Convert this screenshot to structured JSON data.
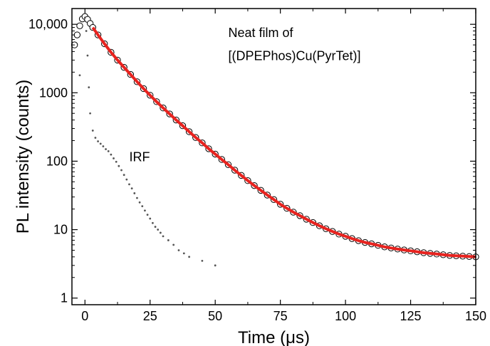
{
  "chart_data": {
    "type": "scatter",
    "scale": "log-y",
    "xlabel": "Time (μs)",
    "ylabel": "PL intensity (counts)",
    "xlim": [
      -5,
      150
    ],
    "ylim": [
      0.8,
      17000
    ],
    "x_ticks": [
      0,
      25,
      50,
      75,
      100,
      125,
      150
    ],
    "x_tick_labels": [
      "0",
      "25",
      "50",
      "75",
      "100",
      "125",
      "150"
    ],
    "y_ticks": [
      1,
      10,
      100,
      1000,
      10000
    ],
    "y_tick_labels": [
      "1",
      "10",
      "100",
      "1000",
      "10,000"
    ],
    "grid": false,
    "annotations": [
      {
        "text": "Neat film of",
        "x": 55,
        "y": 6500
      },
      {
        "text": "[(DPEPhos)Cu(PyrTet)]",
        "x": 55,
        "y": 3000
      },
      {
        "text": "IRF",
        "x": 17,
        "y": 100
      }
    ],
    "series": [
      {
        "marker": "open-circle",
        "color": "#000000",
        "x": [
          -4,
          -3,
          -2,
          -1,
          0,
          1,
          2,
          3,
          5,
          7.5,
          10,
          12.5,
          15,
          17.5,
          20,
          22.5,
          25,
          27.5,
          30,
          32.5,
          35,
          37.5,
          40,
          42.5,
          45,
          47.5,
          50,
          52.5,
          55,
          57.5,
          60,
          62.5,
          65,
          67.5,
          70,
          72.5,
          75,
          77.5,
          80,
          82.5,
          85,
          87.5,
          90,
          92.5,
          95,
          97.5,
          100,
          102.5,
          105,
          107.5,
          110,
          112.5,
          115,
          117.5,
          120,
          122.5,
          125,
          127.5,
          130,
          132.5,
          135,
          137.5,
          140,
          142.5,
          145,
          147.5,
          150
        ],
        "values": [
          5000,
          7000,
          9500,
          12000,
          13000,
          11800,
          10300,
          9000,
          7000,
          5200,
          3900,
          3000,
          2350,
          1850,
          1450,
          1150,
          920,
          740,
          600,
          490,
          400,
          330,
          270,
          222,
          185,
          152,
          127,
          106,
          89,
          74,
          62,
          52,
          44,
          37.5,
          32,
          27.5,
          23.5,
          20.5,
          18,
          16,
          14.2,
          12.7,
          11.4,
          10.3,
          9.4,
          8.6,
          8,
          7.4,
          6.9,
          6.5,
          6.2,
          5.9,
          5.6,
          5.4,
          5.2,
          5.05,
          4.9,
          4.75,
          4.6,
          4.5,
          4.4,
          4.3,
          4.2,
          4.15,
          4.1,
          4.05,
          4
        ]
      },
      {
        "marker": "line",
        "color": "#e8231f",
        "x": [
          3,
          5,
          7.5,
          10,
          12.5,
          15,
          17.5,
          20,
          22.5,
          25,
          27.5,
          30,
          32.5,
          35,
          37.5,
          40,
          42.5,
          45,
          47.5,
          50,
          52.5,
          55,
          57.5,
          60,
          62.5,
          65,
          67.5,
          70,
          72.5,
          75,
          77.5,
          80,
          82.5,
          85,
          87.5,
          90,
          92.5,
          95,
          97.5,
          100,
          102.5,
          105,
          107.5,
          110,
          112.5,
          115,
          117.5,
          120,
          122.5,
          125,
          127.5,
          130,
          132.5,
          135,
          137.5,
          140,
          142.5,
          145,
          147.5,
          150
        ],
        "values": [
          9000,
          7000,
          5200,
          3900,
          3000,
          2350,
          1850,
          1450,
          1150,
          920,
          740,
          600,
          490,
          400,
          330,
          270,
          222,
          185,
          152,
          127,
          106,
          89,
          74,
          62,
          52,
          44,
          37.5,
          32,
          27.5,
          23.5,
          20.5,
          18,
          16,
          14.2,
          12.7,
          11.4,
          10.3,
          9.4,
          8.6,
          8,
          7.4,
          6.9,
          6.5,
          6.2,
          5.9,
          5.6,
          5.4,
          5.2,
          5.05,
          4.9,
          4.75,
          4.6,
          4.5,
          4.4,
          4.3,
          4.2,
          4.15,
          4.1,
          4.05,
          4
        ]
      },
      {
        "marker": "dot",
        "color": "#555555",
        "x": [
          -2,
          0,
          0.5,
          1,
          1.5,
          2,
          3,
          4,
          5,
          6,
          7,
          8,
          9,
          10,
          11,
          12,
          13,
          14,
          15,
          16,
          17,
          18,
          19,
          20,
          21,
          22,
          23,
          24,
          25,
          26,
          27,
          28,
          29,
          30,
          32,
          34,
          36,
          38,
          40,
          45,
          50
        ],
        "values": [
          1800,
          12500,
          8000,
          3500,
          1200,
          500,
          280,
          220,
          195,
          180,
          165,
          150,
          140,
          125,
          110,
          98,
          85,
          74,
          63,
          54,
          46,
          40,
          34,
          29,
          25,
          22,
          19,
          16.5,
          14.5,
          12.5,
          11,
          10,
          9,
          8,
          7,
          6,
          5,
          4.5,
          4,
          3.5,
          3
        ]
      }
    ]
  }
}
